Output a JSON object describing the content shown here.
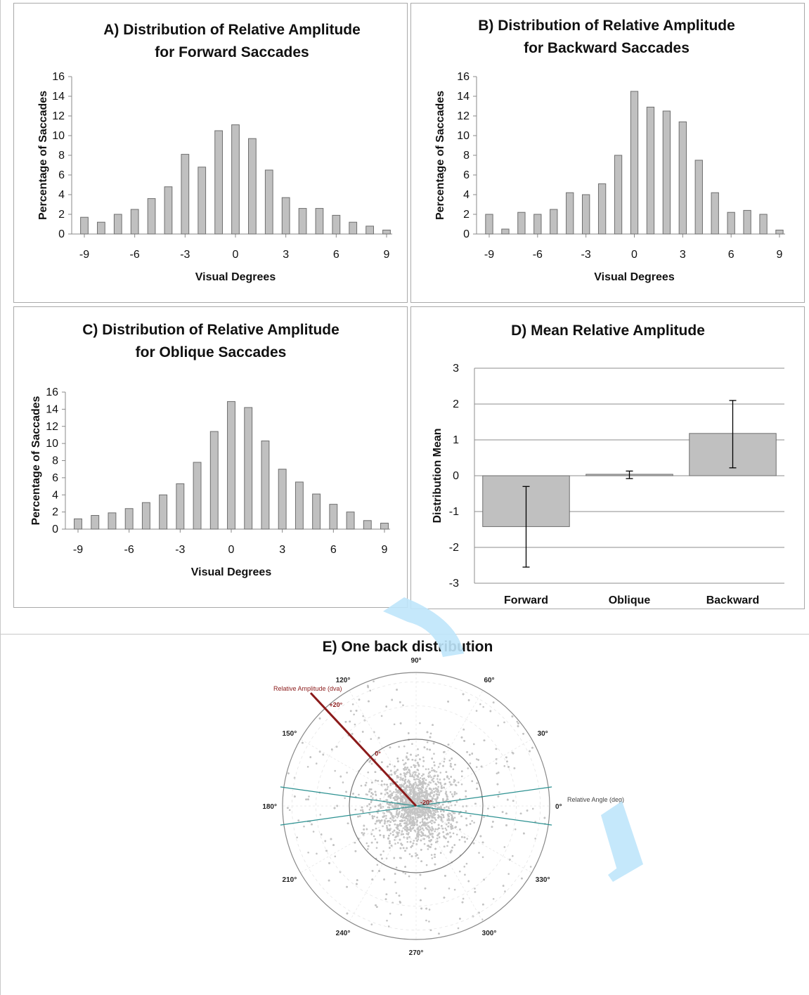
{
  "chart_data": [
    {
      "id": "A",
      "type": "bar",
      "title_lines": [
        "A) Distribution of Relative Amplitude",
        "for Forward Saccades"
      ],
      "xlabel": "Visual Degrees",
      "ylabel": "Percentage of Saccades",
      "xlim": [
        -9,
        9
      ],
      "ylim": [
        0,
        16
      ],
      "xticks": [
        "-9",
        "-6",
        "-3",
        "0",
        "3",
        "6",
        "9"
      ],
      "yticks": [
        "0",
        "2",
        "4",
        "6",
        "8",
        "10",
        "12",
        "14",
        "16"
      ],
      "x": [
        -9,
        -8,
        -7,
        -6,
        -5,
        -4,
        -3,
        -2,
        -1,
        0,
        1,
        2,
        3,
        4,
        5,
        6,
        7,
        8,
        9
      ],
      "values": [
        1.7,
        1.2,
        2.0,
        2.5,
        3.6,
        4.8,
        8.1,
        6.8,
        10.5,
        11.1,
        9.7,
        6.5,
        3.7,
        2.6,
        2.6,
        1.9,
        1.2,
        0.8,
        0.4
      ]
    },
    {
      "id": "B",
      "type": "bar",
      "title_lines": [
        "B) Distribution of Relative Amplitude",
        "for Backward Saccades"
      ],
      "xlabel": "Visual Degrees",
      "ylabel": "Percentage of Saccades",
      "xlim": [
        -9,
        9
      ],
      "ylim": [
        0,
        16
      ],
      "xticks": [
        "-9",
        "-6",
        "-3",
        "0",
        "3",
        "6",
        "9"
      ],
      "yticks": [
        "0",
        "2",
        "4",
        "6",
        "8",
        "10",
        "12",
        "14",
        "16"
      ],
      "x": [
        -9,
        -8,
        -7,
        -6,
        -5,
        -4,
        -3,
        -2,
        -1,
        0,
        1,
        2,
        3,
        4,
        5,
        6,
        7,
        8,
        9
      ],
      "values": [
        2.0,
        0.5,
        2.2,
        2.0,
        2.5,
        4.2,
        4.0,
        5.1,
        8.0,
        14.5,
        12.9,
        12.5,
        11.4,
        7.5,
        4.2,
        2.2,
        2.4,
        2.0,
        0.4
      ]
    },
    {
      "id": "C",
      "type": "bar",
      "title_lines": [
        "C) Distribution of Relative Amplitude",
        "for Oblique Saccades"
      ],
      "xlabel": "Visual Degrees",
      "ylabel": "Percentage of Saccades",
      "xlim": [
        -9,
        9
      ],
      "ylim": [
        0,
        16
      ],
      "xticks": [
        "-9",
        "-6",
        "-3",
        "0",
        "3",
        "6",
        "9"
      ],
      "yticks": [
        "0",
        "2",
        "4",
        "6",
        "8",
        "10",
        "12",
        "14",
        "16"
      ],
      "x": [
        -9,
        -8,
        -7,
        -6,
        -5,
        -4,
        -3,
        -2,
        -1,
        0,
        1,
        2,
        3,
        4,
        5,
        6,
        7,
        8,
        9
      ],
      "values": [
        1.2,
        1.6,
        1.9,
        2.4,
        3.1,
        4.0,
        5.3,
        7.8,
        11.4,
        14.9,
        14.2,
        10.3,
        7.0,
        5.5,
        4.1,
        2.9,
        2.0,
        1.0,
        0.7
      ]
    },
    {
      "id": "D",
      "type": "bar",
      "title_lines": [
        "D) Mean Relative Amplitude"
      ],
      "xlabel": "",
      "ylabel": "Distribution Mean",
      "ylim": [
        -3,
        3
      ],
      "yticks": [
        "-3",
        "-2",
        "-1",
        "0",
        "1",
        "2",
        "3"
      ],
      "grid": true,
      "categories": [
        "Forward",
        "Oblique",
        "Backward"
      ],
      "values": [
        -1.42,
        0.04,
        1.18
      ],
      "error_low": [
        -2.55,
        -0.08,
        0.22
      ],
      "error_high": [
        -0.3,
        0.13,
        2.1
      ]
    },
    {
      "id": "E",
      "type": "scatter",
      "title_lines": [
        "E) One back distribution"
      ],
      "coordinate_system": "polar",
      "angle_labels": [
        "0°",
        "30°",
        "60°",
        "90°",
        "120°",
        "150°",
        "180°",
        "210°",
        "240°",
        "270°",
        "300°",
        "330°"
      ],
      "radial_axis_label": "Relative Amplitude (dva)",
      "angle_axis_label": "Relative Angle (deg)",
      "radial_ticks": [
        "-20°",
        "0°",
        "+20°"
      ],
      "radial_range": [
        -20,
        20
      ],
      "scatter_color": "#c4c4c4",
      "radial_axis_color": "#8b1a1a",
      "boundary_line_color": "#2a9090",
      "boundary_angles_deg": [
        8,
        -8
      ]
    }
  ],
  "colors": {
    "bar_fill": "#c0c0c0",
    "bar_stroke": "#6e6e6e",
    "watermark": "#bfe6fb"
  }
}
